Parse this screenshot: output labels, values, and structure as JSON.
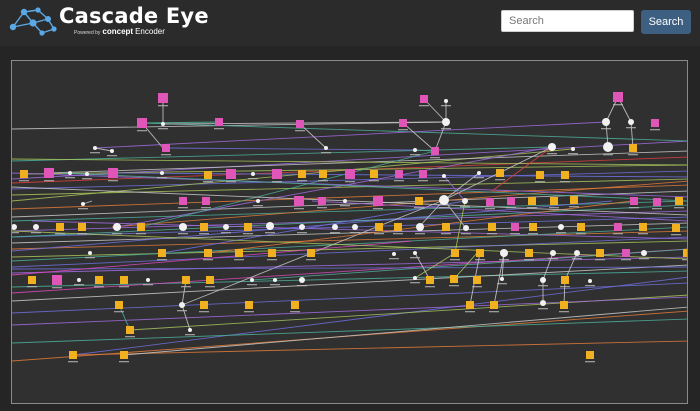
{
  "header": {
    "title": "Cascade Eye",
    "powered_prefix": "Powered by",
    "powered_brand": "concept",
    "powered_suffix": "Encoder"
  },
  "search": {
    "placeholder": "Search",
    "value": "",
    "button_label": "Search"
  },
  "graph": {
    "colors": {
      "panel_bg": "#303030",
      "panel_border": "#8a8a8a",
      "pink_node": "#e055b8",
      "orange_node": "#f0b020",
      "white_node": "#f2f2f2",
      "edges": [
        "#4caf9a",
        "#a06be0",
        "#7070e0",
        "#c9c9c9",
        "#e07a3a",
        "#a8c45a",
        "#d94ac0",
        "#e04040"
      ]
    }
  }
}
